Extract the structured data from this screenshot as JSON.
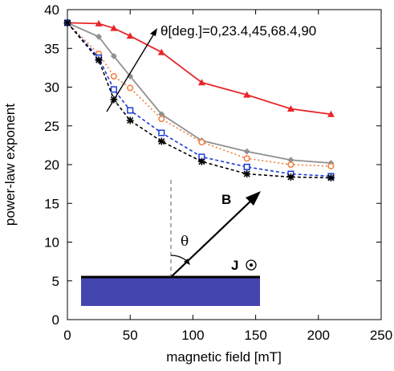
{
  "chart_data": {
    "type": "line",
    "xlabel": "magnetic field [mT]",
    "ylabel": "power-law exponent",
    "xlim": [
      0,
      250
    ],
    "ylim": [
      0,
      40
    ],
    "xticks": [
      0,
      50,
      100,
      150,
      200,
      250
    ],
    "yticks": [
      0,
      5,
      10,
      15,
      20,
      25,
      30,
      35,
      40
    ],
    "annotation": "θ[deg.]=0,23.4,45,68.4,90",
    "inset": {
      "field_label": "B",
      "angle_label": "θ",
      "current_label": "J"
    },
    "series": [
      {
        "color": "#e8262a",
        "marker": "triangle",
        "dash": "solid",
        "x": [
          0,
          25,
          37,
          50,
          75,
          107,
          143,
          178,
          210
        ],
        "y": [
          38.3,
          38.2,
          37.6,
          36.6,
          34.5,
          30.6,
          29.0,
          27.2,
          26.5
        ]
      },
      {
        "color": "#909090",
        "marker": "diamond",
        "dash": "solid",
        "x": [
          0,
          25,
          37,
          50,
          75,
          107,
          143,
          178,
          210
        ],
        "y": [
          38.3,
          36.5,
          34.0,
          31.4,
          26.5,
          23.1,
          21.7,
          20.6,
          20.2
        ]
      },
      {
        "color": "#f07d3c",
        "marker": "circle",
        "dash": "dotted",
        "x": [
          0,
          25,
          37,
          50,
          75,
          107,
          143,
          178,
          210
        ],
        "y": [
          38.3,
          34.3,
          31.4,
          29.9,
          25.9,
          22.9,
          20.8,
          20.0,
          19.8
        ]
      },
      {
        "color": "#1a3bd6",
        "marker": "square",
        "dash": "dashed",
        "x": [
          0,
          25,
          37,
          50,
          75,
          107,
          143,
          178,
          210
        ],
        "y": [
          38.3,
          33.8,
          29.7,
          27.0,
          24.1,
          21.0,
          19.7,
          18.8,
          18.5
        ]
      },
      {
        "color": "#000000",
        "marker": "star",
        "dash": "dashed",
        "x": [
          0,
          25,
          37,
          50,
          75,
          107,
          143,
          178,
          210
        ],
        "y": [
          38.3,
          33.5,
          28.4,
          25.7,
          23.0,
          20.4,
          18.8,
          18.4,
          18.3
        ]
      }
    ]
  }
}
